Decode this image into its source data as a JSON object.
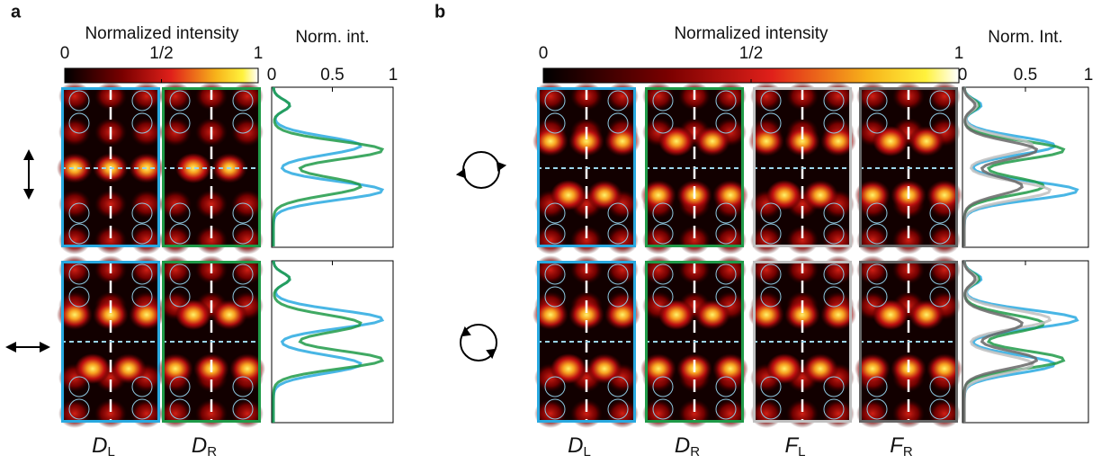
{
  "panels": [
    {
      "label": "a",
      "colorbar": {
        "title": "Normalized intensity",
        "ticks": [
          0,
          {
            "value": 0.5,
            "label": "1/2"
          },
          1
        ]
      },
      "profile": {
        "title": "Norm. int.",
        "ticks": [
          0,
          0.5,
          1
        ]
      },
      "columns": [
        {
          "name": "D",
          "sub": "L",
          "color": "#29a9e0"
        },
        {
          "name": "D",
          "sub": "R",
          "color": "#1f9a48"
        }
      ]
    },
    {
      "label": "b",
      "colorbar": {
        "title": "Normalized intensity",
        "ticks": [
          0,
          {
            "value": 0.5,
            "label": "1/2"
          },
          1
        ]
      },
      "profile": {
        "title": "Norm. Int.",
        "ticks": [
          0,
          0.5,
          1
        ]
      },
      "columns": [
        {
          "name": "D",
          "sub": "L",
          "color": "#29a9e0"
        },
        {
          "name": "D",
          "sub": "R",
          "color": "#1f9a48"
        },
        {
          "name": "F",
          "sub": "L",
          "color": "#c0c0c0"
        },
        {
          "name": "F",
          "sub": "R",
          "color": "#666666"
        }
      ]
    }
  ]
}
